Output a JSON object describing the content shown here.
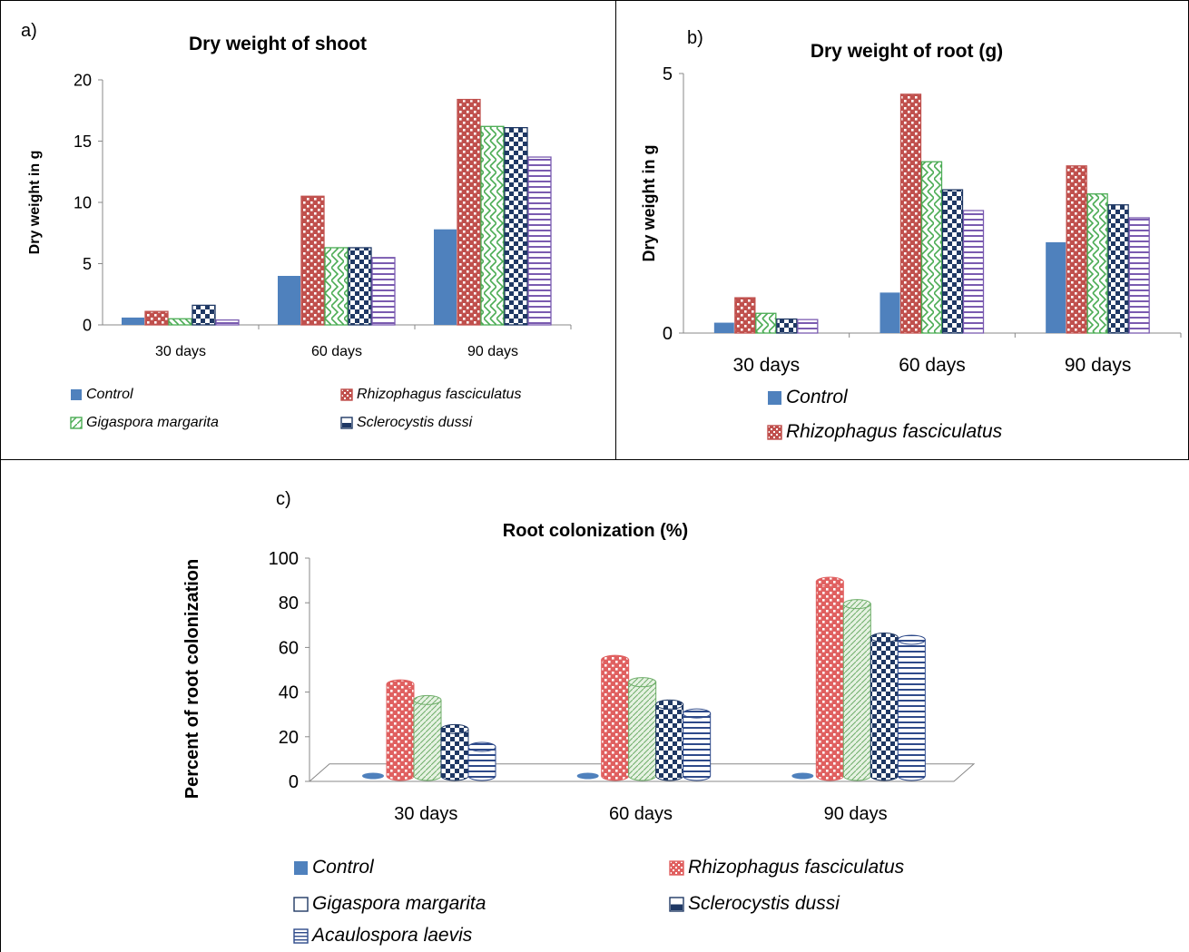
{
  "chart_data": [
    {
      "panel": "a)",
      "type": "bar",
      "title": "Dry weight of shoot",
      "xlabel": "",
      "ylabel": "Dry weight in g",
      "ylim": [
        0,
        20
      ],
      "yticks": [
        "0",
        "5",
        "10",
        "15",
        "20"
      ],
      "categories": [
        "30 days",
        "60 days",
        "90 days"
      ],
      "series": [
        {
          "name": "Control",
          "values": [
            0.6,
            4.0,
            7.8
          ],
          "color": "#4f81bd",
          "pattern": "solid"
        },
        {
          "name": "Rhizophagus fasciculatus",
          "values": [
            1.1,
            10.5,
            18.4
          ],
          "color": "#c0504d",
          "pattern": "dots"
        },
        {
          "name": "Gigaspora margarita",
          "values": [
            0.5,
            6.3,
            16.2
          ],
          "color": "#4bac54",
          "pattern": "zigzag"
        },
        {
          "name": "Sclerocystis dussi",
          "values": [
            1.6,
            6.3,
            16.1
          ],
          "color": "#1f3864",
          "pattern": "checker"
        },
        {
          "name": "",
          "values": [
            0.4,
            5.5,
            13.7
          ],
          "color": "#7a5bb0",
          "pattern": "hstripes"
        }
      ],
      "legend": {
        "placement": "bottom",
        "entries": [
          "Control",
          "Rhizophagus fasciculatus",
          "Gigaspora margarita",
          "Sclerocystis dussi"
        ]
      }
    },
    {
      "panel": "b)",
      "type": "bar",
      "title": "Dry weight of root (g)",
      "xlabel": "",
      "ylabel": "Dry weight in g",
      "ylim": [
        0,
        5
      ],
      "yticks": [
        "0",
        "5"
      ],
      "categories": [
        "30 days",
        "60 days",
        "90 days"
      ],
      "series": [
        {
          "name": "Control",
          "values": [
            0.2,
            0.78,
            1.75
          ],
          "color": "#4f81bd",
          "pattern": "solid"
        },
        {
          "name": "Rhizophagus fasciculatus",
          "values": [
            0.68,
            4.6,
            3.22
          ],
          "color": "#c0504d",
          "pattern": "dots"
        },
        {
          "name": "",
          "values": [
            0.38,
            3.3,
            2.68
          ],
          "color": "#4bac54",
          "pattern": "zigzag"
        },
        {
          "name": "",
          "values": [
            0.27,
            2.76,
            2.47
          ],
          "color": "#1f3864",
          "pattern": "checker"
        },
        {
          "name": "",
          "values": [
            0.26,
            2.36,
            2.22
          ],
          "color": "#7a5bb0",
          "pattern": "hstripes"
        }
      ],
      "legend": {
        "placement": "bottom",
        "entries": [
          "Control",
          "Rhizophagus fasciculatus"
        ]
      }
    },
    {
      "panel": "c)",
      "type": "bar",
      "title": "Root colonization (%)",
      "xlabel": "",
      "ylabel": "Percent of root colonization",
      "ylim": [
        0,
        100
      ],
      "yticks": [
        "0",
        "20",
        "40",
        "60",
        "80",
        "100"
      ],
      "categories": [
        "30 days",
        "60 days",
        "90 days"
      ],
      "series": [
        {
          "name": "Control",
          "values": [
            0,
            0,
            0
          ],
          "color": "#4f81bd",
          "pattern": "solid"
        },
        {
          "name": "Rhizophagus fasciculatus",
          "values": [
            41,
            52,
            87
          ],
          "color": "#e06060",
          "pattern": "dots"
        },
        {
          "name": "Gigaspora margarita",
          "values": [
            34,
            42,
            77
          ],
          "color": "#6fae6a",
          "pattern": "light"
        },
        {
          "name": "Sclerocystis dussi",
          "values": [
            21,
            32,
            62
          ],
          "color": "#1f3864",
          "pattern": "checker"
        },
        {
          "name": "Acaulospora laevis",
          "values": [
            13,
            28,
            61
          ],
          "color": "#2e4a8a",
          "pattern": "hstripes"
        }
      ],
      "legend": {
        "placement": "bottom",
        "entries": [
          "Control",
          "Rhizophagus fasciculatus",
          "Gigaspora margarita",
          "Sclerocystis dussi",
          "Acaulospora laevis"
        ]
      }
    }
  ]
}
